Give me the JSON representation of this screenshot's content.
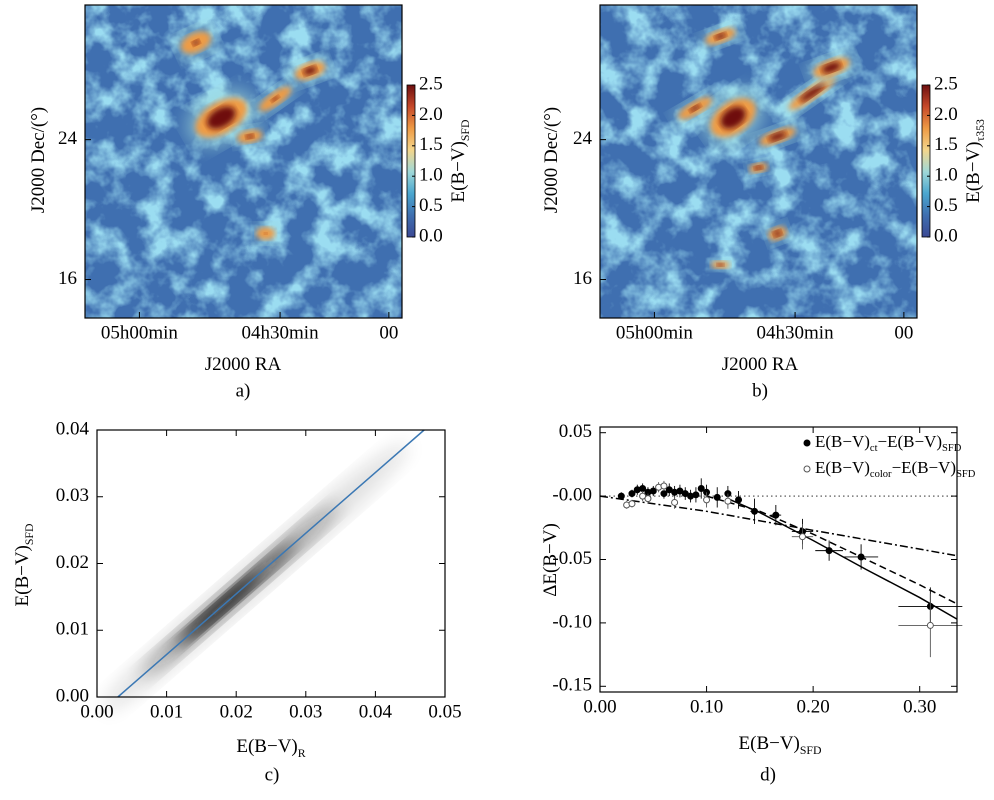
{
  "chart_data": [
    {
      "type": "heatmap",
      "caption": "a)",
      "xlabel": "J2000 RA",
      "ylabel": "J2000 Dec/(°)",
      "xlim": [
        77.9,
        61.0
      ],
      "xticks": [
        {
          "value": 75,
          "label": "05h00min"
        },
        {
          "value": 67.5,
          "label": "04h30min"
        },
        {
          "value": 61.7,
          "label": "00"
        }
      ],
      "ylim": [
        13.8,
        31.7
      ],
      "yticks": [
        24,
        16
      ],
      "colorbar": {
        "label": "E(B−V)",
        "label_sub": "SFD",
        "lim": [
          0,
          2.5
        ],
        "ticks": [
          {
            "value": 0,
            "label": "0.0"
          },
          0.5,
          {
            "value": 1,
            "label": "1.0"
          },
          1.5,
          {
            "value": 2,
            "label": "2.0"
          },
          2.5
        ],
        "colors": [
          "#3b4994",
          "#3f6fb0",
          "#4aa6cf",
          "#9fd8d8",
          "#f3d68c",
          "#ee9b45",
          "#c6492a",
          "#6e1010"
        ]
      }
    },
    {
      "type": "heatmap",
      "caption": "b)",
      "xlabel": "J2000 RA",
      "ylabel": "J2000 Dec/(°)",
      "xlim": [
        77.9,
        61.0
      ],
      "xticks": [
        {
          "value": 75,
          "label": "05h00min"
        },
        {
          "value": 67.5,
          "label": "04h30min"
        },
        {
          "value": 61.7,
          "label": "00"
        }
      ],
      "ylim": [
        13.8,
        31.7
      ],
      "yticks": [
        24,
        16
      ],
      "colorbar": {
        "label": "E(B−V)",
        "label_sub": "τ353",
        "lim": [
          0,
          2.5
        ],
        "ticks": [
          {
            "value": 0,
            "label": "0.0"
          },
          0.5,
          {
            "value": 1,
            "label": "1.0"
          },
          1.5,
          {
            "value": 2,
            "label": "2.0"
          },
          2.5
        ],
        "colors": [
          "#3b4994",
          "#3f6fb0",
          "#4aa6cf",
          "#9fd8d8",
          "#f3d68c",
          "#ee9b45",
          "#c6492a",
          "#6e1010"
        ]
      }
    },
    {
      "type": "density",
      "caption": "c)",
      "xlabel": "E(B−V)",
      "xlabel_sub": "R",
      "ylabel": "E(B−V)",
      "ylabel_sub": "SFD",
      "xlim": [
        0,
        0.05
      ],
      "xticks": [
        {
          "value": 0,
          "label": "0.00"
        },
        0.01,
        0.02,
        0.03,
        0.04,
        0.05
      ],
      "ylim": [
        0,
        0.04
      ],
      "yticks": [
        {
          "value": 0,
          "label": "0.00"
        },
        0.01,
        0.02,
        0.03,
        0.04
      ],
      "cloud_color": "#111111",
      "series": [
        {
          "color": "#3b78b4",
          "x": [
            0.003,
            0.047
          ],
          "y": [
            0,
            0.04
          ]
        }
      ]
    },
    {
      "type": "errorbar",
      "caption": "d)",
      "xlabel": "E(B−V)",
      "xlabel_sub": "SFD",
      "ylabel": "ΔE(B−V)",
      "xlim": [
        0,
        0.335
      ],
      "xticks": [
        {
          "value": 0,
          "label": "0.00"
        },
        {
          "value": 0.1,
          "label": "0.10"
        },
        {
          "value": 0.2,
          "label": "0.20"
        },
        {
          "value": 0.3,
          "label": "0.30"
        }
      ],
      "ylim": [
        -0.1545,
        0.0545
      ],
      "yticks": [
        0.05,
        {
          "value": 0,
          "label": "-0.00"
        },
        -0.05,
        {
          "value": -0.1,
          "label": "-0.10"
        },
        -0.15
      ],
      "legend": "upper right",
      "series": [
        {
          "name": [
            "E(B−V)",
            "ct",
            "−E(B−V)",
            "SFD"
          ],
          "marker": "filled",
          "color": "#000000",
          "x": [
            0.02,
            0.03,
            0.035,
            0.04,
            0.045,
            0.05,
            0.06,
            0.065,
            0.07,
            0.075,
            0.08,
            0.085,
            0.09,
            0.095,
            0.1,
            0.11,
            0.12,
            0.13,
            0.145,
            0.165,
            0.19,
            0.215,
            0.245,
            0.31
          ],
          "y": [
            0.0,
            0.002,
            0.005,
            0.006,
            0.003,
            0.004,
            0.002,
            0.005,
            0.003,
            0.004,
            0.002,
            0.0,
            0.001,
            0.006,
            0.003,
            -0.001,
            0.002,
            -0.003,
            -0.012,
            -0.015,
            -0.028,
            -0.043,
            -0.048,
            -0.087
          ],
          "yerr": [
            0.003,
            0.003,
            0.004,
            0.004,
            0.004,
            0.004,
            0.004,
            0.005,
            0.005,
            0.005,
            0.005,
            0.005,
            0.006,
            0.008,
            0.006,
            0.008,
            0.006,
            0.007,
            0.01,
            0.008,
            0.01,
            0.008,
            0.01,
            0.015
          ],
          "xerr": [
            0,
            0,
            0,
            0,
            0,
            0,
            0,
            0,
            0,
            0,
            0,
            0,
            0,
            0,
            0,
            0,
            0,
            0,
            0.004,
            0.005,
            0.01,
            0.013,
            0.016,
            0.03
          ]
        },
        {
          "name": [
            "E(B−V)",
            "color",
            "−E(B−V)",
            "SFD"
          ],
          "marker": "open",
          "color": "#555555",
          "x": [
            0.025,
            0.03,
            0.04,
            0.045,
            0.055,
            0.06,
            0.07,
            0.1,
            0.12,
            0.19,
            0.31
          ],
          "y": [
            -0.007,
            -0.006,
            0.0,
            -0.002,
            0.007,
            0.008,
            -0.005,
            -0.003,
            -0.004,
            -0.032,
            -0.102
          ],
          "yerr": [
            0.003,
            0.003,
            0.004,
            0.004,
            0.004,
            0.004,
            0.005,
            0.006,
            0.006,
            0.01,
            0.025
          ],
          "xerr": [
            0,
            0,
            0,
            0,
            0,
            0,
            0,
            0,
            0,
            0.01,
            0.03
          ]
        }
      ],
      "lines": [
        {
          "style": "dotted",
          "color": "#777777",
          "x": [
            0,
            0.335
          ],
          "y": [
            0,
            0
          ]
        },
        {
          "style": "dashdot",
          "color": "#000000",
          "x": [
            0,
            0.1,
            0.2,
            0.335
          ],
          "y": [
            0,
            -0.012,
            -0.027,
            -0.047
          ]
        },
        {
          "style": "dashed",
          "color": "#000000",
          "x": [
            0.1,
            0.15,
            0.2,
            0.25,
            0.3,
            0.335
          ],
          "y": [
            0,
            -0.012,
            -0.03,
            -0.05,
            -0.07,
            -0.085
          ]
        },
        {
          "style": "solid",
          "color": "#000000",
          "x": [
            0.12,
            0.15,
            0.2,
            0.25,
            0.3,
            0.335
          ],
          "y": [
            -0.002,
            -0.013,
            -0.035,
            -0.058,
            -0.08,
            -0.097
          ]
        }
      ]
    }
  ]
}
